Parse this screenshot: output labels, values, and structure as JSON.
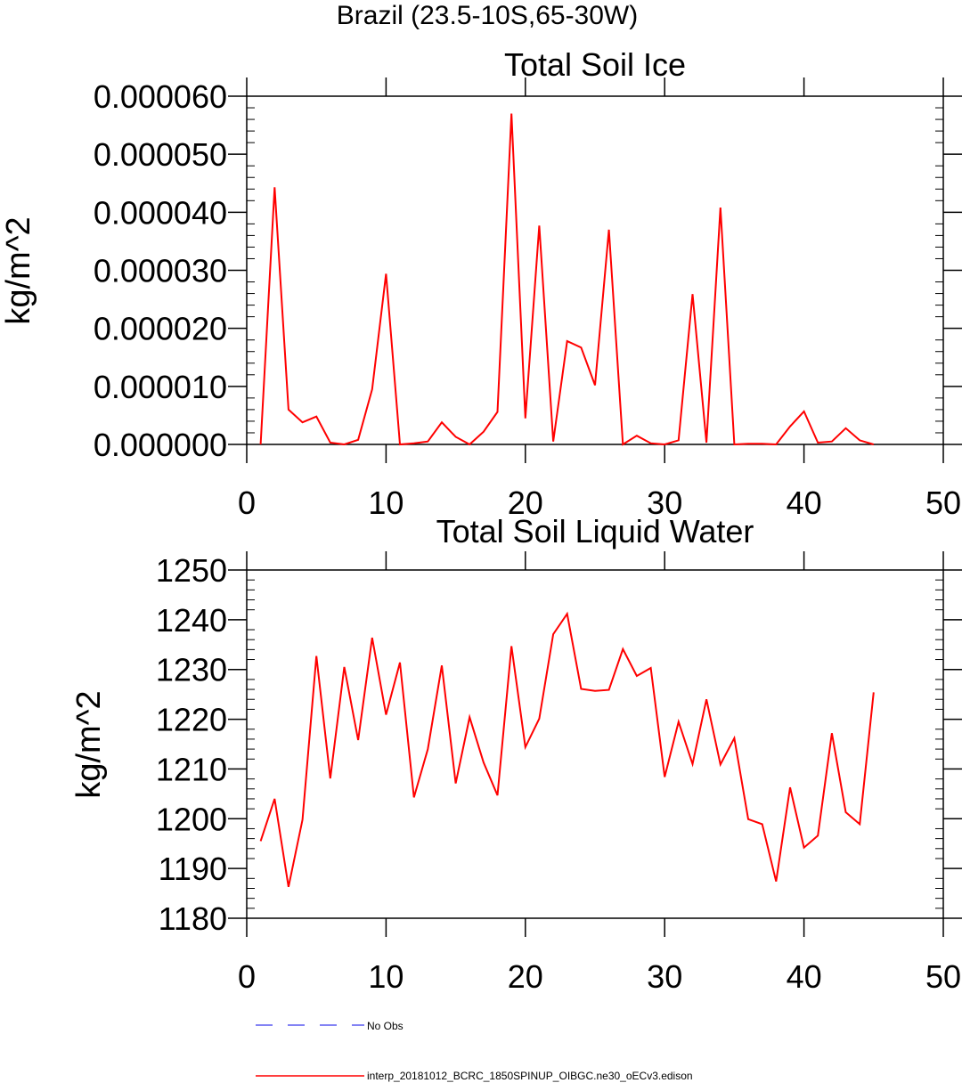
{
  "figure": {
    "suptitle": "Brazil (23.5-10S,65-30W)"
  },
  "chart_data": [
    {
      "type": "line",
      "title": "Total Soil Ice",
      "xlabel": "",
      "ylabel": "kg/m^2",
      "xlim": [
        0,
        50
      ],
      "ylim": [
        0,
        6e-05
      ],
      "x_ticks": [
        0,
        10,
        20,
        30,
        40,
        50
      ],
      "x_tick_labels": [
        "0",
        "10",
        "20",
        "30",
        "40",
        "50"
      ],
      "y_ticks": [
        0,
        1e-05,
        2e-05,
        3e-05,
        4e-05,
        5e-05,
        6e-05
      ],
      "y_tick_labels": [
        "0.000000",
        "0.000010",
        "0.000020",
        "0.000030",
        "0.000040",
        "0.000050",
        "0.000060"
      ],
      "grid": false,
      "series": [
        {
          "color": "#ff0000",
          "x": [
            1,
            2,
            3,
            4,
            5,
            6,
            7,
            8,
            9,
            10,
            11,
            12,
            13,
            14,
            15,
            16,
            17,
            18,
            19,
            20,
            21,
            22,
            23,
            24,
            25,
            26,
            27,
            28,
            29,
            30,
            31,
            32,
            33,
            34,
            35,
            36,
            37,
            38,
            39,
            40,
            41,
            42,
            43,
            44,
            45
          ],
          "y": [
            0.0,
            4.43e-05,
            6e-06,
            3.8e-06,
            4.8e-06,
            3e-07,
            0.0,
            8e-07,
            9.5e-06,
            2.94e-05,
            0.0,
            2e-07,
            5e-07,
            3.8e-06,
            1.3e-06,
            0.0,
            2.2e-06,
            5.6e-06,
            5.7e-05,
            4.5e-06,
            3.77e-05,
            5e-07,
            1.78e-05,
            1.67e-05,
            1.02e-05,
            3.7e-05,
            0.0,
            1.5e-06,
            2e-07,
            0.0,
            7e-07,
            2.59e-05,
            3e-07,
            4.08e-05,
            0.0,
            1e-07,
            1e-07,
            0.0,
            3.1e-06,
            5.7e-06,
            3e-07,
            5e-07,
            2.8e-06,
            7e-07,
            0.0
          ]
        }
      ]
    },
    {
      "type": "line",
      "title": "Total Soil Liquid Water",
      "xlabel": "",
      "ylabel": "kg/m^2",
      "xlim": [
        0,
        50
      ],
      "ylim": [
        1180,
        1250
      ],
      "x_ticks": [
        0,
        10,
        20,
        30,
        40,
        50
      ],
      "x_tick_labels": [
        "0",
        "10",
        "20",
        "30",
        "40",
        "50"
      ],
      "y_ticks": [
        1180,
        1190,
        1200,
        1210,
        1220,
        1230,
        1240,
        1250
      ],
      "y_tick_labels": [
        "1180",
        "1190",
        "1200",
        "1210",
        "1220",
        "1230",
        "1240",
        "1250"
      ],
      "grid": false,
      "series": [
        {
          "color": "#ff0000",
          "x": [
            1,
            2,
            3,
            4,
            5,
            6,
            7,
            8,
            9,
            10,
            11,
            12,
            13,
            14,
            15,
            16,
            17,
            18,
            19,
            20,
            21,
            22,
            23,
            24,
            25,
            26,
            27,
            28,
            29,
            30,
            31,
            32,
            33,
            34,
            35,
            36,
            37,
            38,
            39,
            40,
            41,
            42,
            43,
            44,
            45
          ],
          "y": [
            1195.5,
            1204.0,
            1186.3,
            1199.8,
            1232.7,
            1208.1,
            1230.5,
            1215.8,
            1236.4,
            1220.9,
            1231.4,
            1204.3,
            1214.0,
            1230.8,
            1207.1,
            1220.4,
            1211.3,
            1204.7,
            1234.7,
            1214.4,
            1220.1,
            1237.1,
            1241.2,
            1226.1,
            1225.7,
            1225.9,
            1234.1,
            1228.7,
            1230.3,
            1208.4,
            1219.5,
            1211.0,
            1224.0,
            1210.9,
            1216.2,
            1199.9,
            1198.9,
            1187.4,
            1206.3,
            1194.2,
            1196.6,
            1217.2,
            1201.3,
            1198.9,
            1225.4
          ]
        }
      ]
    }
  ],
  "legend": {
    "placement": "bottom",
    "entries": [
      {
        "label": "No Obs",
        "color": "#5a5af0",
        "style": "dashed"
      },
      {
        "label": "interp_20181012_BCRC_1850SPINUP_OIBGC.ne30_oECv3.edison",
        "color": "#ff0000",
        "style": "solid"
      }
    ]
  }
}
